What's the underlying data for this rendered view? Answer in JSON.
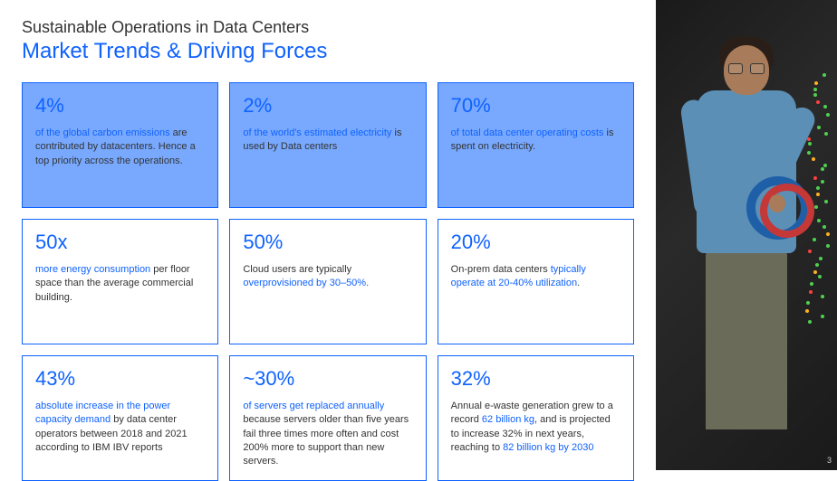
{
  "header": {
    "subtitle": "Sustainable Operations in Data Centers",
    "title": "Market Trends & Driving Forces"
  },
  "cards": [
    {
      "stat": "4%",
      "filled": true,
      "desc_parts": [
        {
          "text": "of the global carbon emissions",
          "em": true
        },
        {
          "text": " are contributed by datacenters. Hence a top priority across the operations.",
          "em": false
        }
      ]
    },
    {
      "stat": "2%",
      "filled": true,
      "desc_parts": [
        {
          "text": "of the world's estimated electricity",
          "em": true
        },
        {
          "text": " is used by Data centers",
          "em": false
        }
      ]
    },
    {
      "stat": "70%",
      "filled": true,
      "desc_parts": [
        {
          "text": "of total data center operating costs",
          "em": true
        },
        {
          "text": " is spent on electricity.",
          "em": false
        }
      ]
    },
    {
      "stat": "50x",
      "filled": false,
      "desc_parts": [
        {
          "text": "more energy consumption",
          "em": true
        },
        {
          "text": " per floor space than the average commercial building.",
          "em": false
        }
      ]
    },
    {
      "stat": "50%",
      "filled": false,
      "desc_parts": [
        {
          "text": "Cloud users are typically ",
          "em": false
        },
        {
          "text": "overprovisioned by 30–50%.",
          "em": true
        }
      ]
    },
    {
      "stat": "20%",
      "filled": false,
      "desc_parts": [
        {
          "text": "On-prem data centers ",
          "em": false
        },
        {
          "text": "typically operate at 20-40% utilization",
          "em": true
        },
        {
          "text": ".",
          "em": false
        }
      ]
    },
    {
      "stat": "43%",
      "filled": false,
      "desc_parts": [
        {
          "text": "absolute increase in the power capacity demand",
          "em": true
        },
        {
          "text": " by data center operators between 2018 and 2021 according to IBM IBV reports",
          "em": false
        }
      ]
    },
    {
      "stat": "~30%",
      "filled": false,
      "desc_parts": [
        {
          "text": "of servers get replaced annually",
          "em": true
        },
        {
          "text": " because servers older than five years fail three times more often and cost 200% more to support than new servers.",
          "em": false
        }
      ]
    },
    {
      "stat": "32%",
      "filled": false,
      "desc_parts": [
        {
          "text": "Annual e-waste generation grew to a record ",
          "em": false
        },
        {
          "text": "62 billion kg",
          "em": true
        },
        {
          "text": ", and is projected to increase 32% in next years, reaching to ",
          "em": false
        },
        {
          "text": "82 billion kg by 2030",
          "em": true
        }
      ]
    }
  ],
  "page_number": "3",
  "colors": {
    "accent": "#0f62fe",
    "card_fill": "#78a9ff",
    "text_dark": "#333333",
    "shirt": "#5b8fb5",
    "cable_blue": "#1e5fa8",
    "cable_red": "#c43838"
  }
}
